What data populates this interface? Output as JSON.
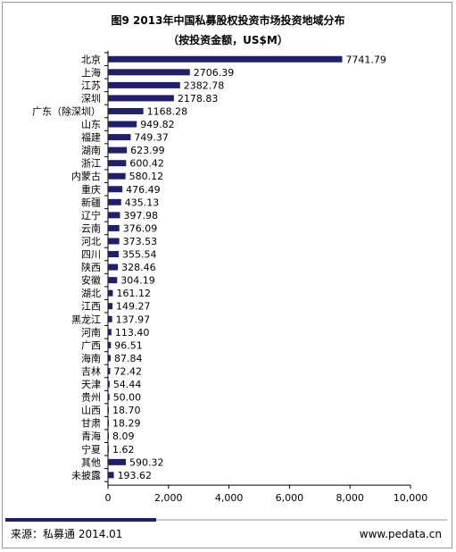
{
  "chart_data": {
    "type": "bar",
    "orientation": "horizontal",
    "title": "图9 2013年中国私募股权投资市场投资地域分布",
    "subtitle": "（按投资金额，US$M）",
    "categories": [
      "北京",
      "上海",
      "江苏",
      "深圳",
      "广东（除深圳）",
      "山东",
      "福建",
      "湖南",
      "浙江",
      "内蒙古",
      "重庆",
      "新疆",
      "辽宁",
      "云南",
      "河北",
      "四川",
      "陕西",
      "安徽",
      "湖北",
      "江西",
      "黑龙江",
      "河南",
      "广西",
      "海南",
      "吉林",
      "天津",
      "贵州",
      "山西",
      "甘肃",
      "青海",
      "宁夏",
      "其他",
      "未披露"
    ],
    "values": [
      7741.79,
      2706.39,
      2382.78,
      2178.83,
      1168.28,
      949.82,
      749.37,
      623.99,
      600.42,
      580.12,
      476.49,
      435.13,
      397.98,
      376.09,
      373.53,
      355.54,
      328.46,
      304.19,
      161.12,
      149.27,
      137.97,
      113.4,
      96.51,
      87.84,
      72.42,
      54.44,
      50.0,
      18.7,
      18.29,
      8.09,
      1.62,
      590.32,
      193.62
    ],
    "value_labels": [
      "7741.79",
      "2706.39",
      "2382.78",
      "2178.83",
      "1168.28",
      "949.82",
      "749.37",
      "623.99",
      "600.42",
      "580.12",
      "476.49",
      "435.13",
      "397.98",
      "376.09",
      "373.53",
      "355.54",
      "328.46",
      "304.19",
      "161.12",
      "149.27",
      "137.97",
      "113.40",
      "96.51",
      "87.84",
      "72.42",
      "54.44",
      "50.00",
      "18.70",
      "18.29",
      "8.09",
      "1.62",
      "590.32",
      "193.62"
    ],
    "xlim": [
      0,
      10000
    ],
    "xticks": [
      0,
      2000,
      4000,
      6000,
      8000,
      10000
    ],
    "xtick_labels": [
      "0",
      "2,000",
      "4,000",
      "6,000",
      "8,000",
      "10,000"
    ],
    "xlabel": "",
    "ylabel": "",
    "grid": false,
    "bar_color": "#1f1f6e"
  },
  "footer": {
    "source": "来源：私募通  2014.01",
    "site": "www.pedata.cn"
  }
}
